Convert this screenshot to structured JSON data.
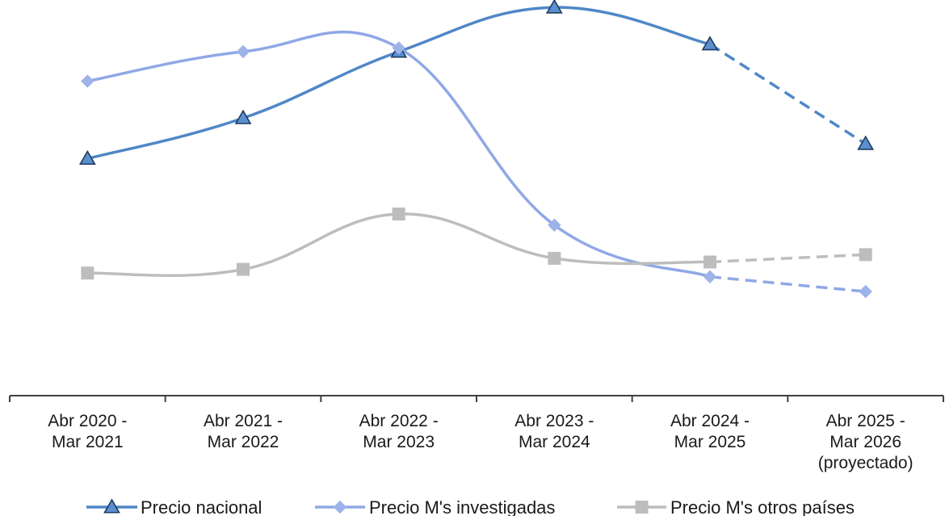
{
  "chart_data": {
    "type": "line",
    "title": "",
    "xlabel": "",
    "ylabel": "",
    "ylim": [
      0,
      100
    ],
    "y_axis_labels_shown": false,
    "grid": false,
    "legend_position": "bottom",
    "categories": [
      [
        "Abr  2020 -",
        "Mar 2021"
      ],
      [
        "Abr  2021 -",
        "Mar 2022"
      ],
      [
        "Abr  2022 -",
        "Mar 2023"
      ],
      [
        "Abr  2023 -",
        "Mar 2024"
      ],
      [
        "Abr  2024 -",
        "Mar 2025"
      ],
      [
        "Abr  2025 -",
        "Mar 2026",
        "(proyectado)"
      ]
    ],
    "series": [
      {
        "name": "Precio nacional",
        "values": [
          57,
          68,
          86,
          98,
          88,
          61
        ],
        "color": "#4f87c7",
        "marker_fill": "#5b8fd0",
        "marker": "triangle",
        "projected_from_index": 4
      },
      {
        "name": "Precio M's investigadas",
        "values": [
          78,
          86,
          87,
          39,
          25,
          21
        ],
        "color": "#8fa8e6",
        "marker_fill": "#9db3ea",
        "marker": "diamond",
        "projected_from_index": 4
      },
      {
        "name": "Precio M's otros países",
        "values": [
          26,
          27,
          42,
          30,
          29,
          31
        ],
        "color": "#bdbdbd",
        "marker_fill": "#bdbdbd",
        "marker": "square",
        "projected_from_index": 4
      }
    ]
  }
}
